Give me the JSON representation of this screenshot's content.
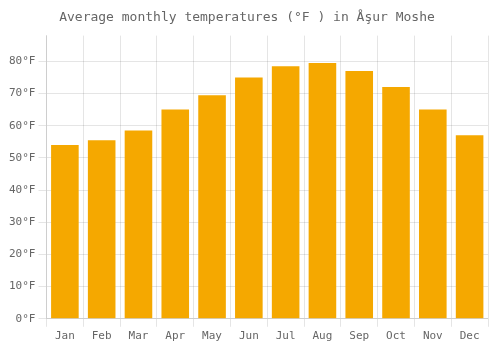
{
  "chart_data": {
    "type": "bar",
    "title": "Average monthly temperatures (°F ) in Åşur Moshe",
    "categories": [
      "Jan",
      "Feb",
      "Mar",
      "Apr",
      "May",
      "Jun",
      "Jul",
      "Aug",
      "Sep",
      "Oct",
      "Nov",
      "Dec"
    ],
    "values": [
      54,
      55.5,
      58.5,
      65,
      69.5,
      75,
      78.5,
      79.5,
      77,
      72,
      65,
      57
    ],
    "color": "#F5A800",
    "ylim": [
      0,
      88
    ],
    "yticks": [
      {
        "value": 0,
        "label": "0°F"
      },
      {
        "value": 10,
        "label": "10°F"
      },
      {
        "value": 20,
        "label": "20°F"
      },
      {
        "value": 30,
        "label": "30°F"
      },
      {
        "value": 40,
        "label": "40°F"
      },
      {
        "value": 50,
        "label": "50°F"
      },
      {
        "value": 60,
        "label": "60°F"
      },
      {
        "value": 70,
        "label": "70°F"
      },
      {
        "value": 80,
        "label": "80°F"
      }
    ],
    "grid": true
  }
}
